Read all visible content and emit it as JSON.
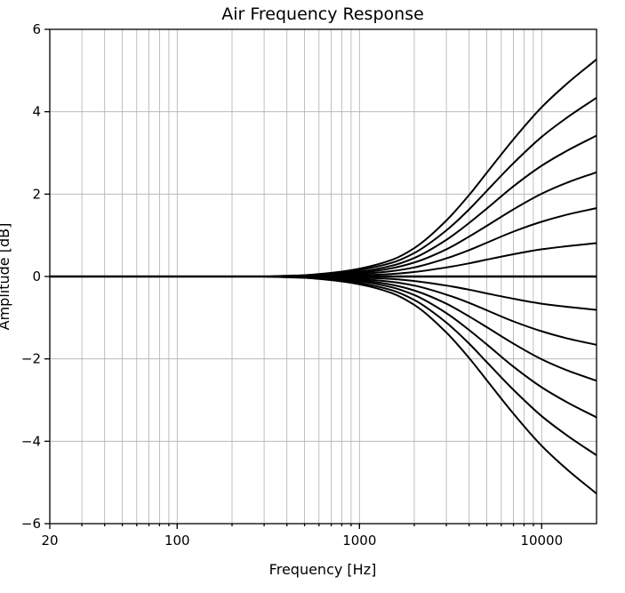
{
  "chart_data": {
    "type": "line",
    "title": "Air Frequency Response",
    "xlabel": "Frequency [Hz]",
    "ylabel": "Amplitude [dB]",
    "x_scale": "log",
    "xlim": [
      20,
      20000
    ],
    "ylim": [
      -6,
      6
    ],
    "x_ticks": [
      20,
      100,
      1000,
      10000
    ],
    "y_ticks": [
      6,
      4,
      2,
      0,
      -2,
      -4,
      -6
    ],
    "y_tick_labels": [
      "6",
      "4",
      "2",
      "0",
      "−2",
      "−4",
      "−6"
    ],
    "grid": true,
    "x": [
      20,
      100,
      200,
      300,
      400,
      500,
      600,
      800,
      1000,
      1500,
      2000,
      3000,
      4000,
      5000,
      7000,
      10000,
      14000,
      20000
    ],
    "series": [
      {
        "values": [
          0,
          0,
          0,
          0,
          0,
          0.01,
          0.01,
          0.02,
          0.03,
          0.06,
          0.11,
          0.22,
          0.32,
          0.41,
          0.54,
          0.66,
          0.74,
          0.81
        ]
      },
      {
        "values": [
          0,
          0,
          0,
          0,
          0,
          0.01,
          0.02,
          0.04,
          0.06,
          0.13,
          0.22,
          0.44,
          0.64,
          0.82,
          1.09,
          1.33,
          1.51,
          1.66
        ]
      },
      {
        "values": [
          0,
          0,
          0,
          0,
          0.01,
          0.02,
          0.03,
          0.06,
          0.09,
          0.2,
          0.34,
          0.66,
          0.97,
          1.23,
          1.63,
          2.01,
          2.29,
          2.53
        ]
      },
      {
        "values": [
          0,
          0,
          0,
          0,
          0.01,
          0.02,
          0.04,
          0.08,
          0.12,
          0.26,
          0.45,
          0.89,
          1.3,
          1.65,
          2.19,
          2.69,
          3.07,
          3.42
        ]
      },
      {
        "values": [
          0,
          0,
          0,
          0,
          0.01,
          0.03,
          0.05,
          0.1,
          0.16,
          0.33,
          0.57,
          1.12,
          1.63,
          2.08,
          2.75,
          3.39,
          3.88,
          4.34
        ]
      },
      {
        "values": [
          0,
          0,
          0,
          0,
          0.02,
          0.03,
          0.06,
          0.12,
          0.19,
          0.4,
          0.69,
          1.36,
          1.98,
          2.52,
          3.33,
          4.11,
          4.71,
          5.27
        ]
      },
      {
        "values": [
          0,
          0,
          0,
          0,
          0,
          0,
          0,
          0,
          0,
          0,
          0,
          0,
          0,
          0,
          0,
          0,
          0,
          0
        ]
      },
      {
        "values": [
          0,
          0,
          0,
          0,
          0,
          -0.01,
          -0.01,
          -0.02,
          -0.03,
          -0.06,
          -0.11,
          -0.22,
          -0.32,
          -0.41,
          -0.54,
          -0.66,
          -0.74,
          -0.81
        ]
      },
      {
        "values": [
          0,
          0,
          0,
          0,
          0,
          -0.01,
          -0.02,
          -0.04,
          -0.06,
          -0.13,
          -0.22,
          -0.44,
          -0.64,
          -0.82,
          -1.09,
          -1.33,
          -1.51,
          -1.66
        ]
      },
      {
        "values": [
          0,
          0,
          0,
          0,
          -0.01,
          -0.02,
          -0.03,
          -0.06,
          -0.09,
          -0.2,
          -0.34,
          -0.66,
          -0.97,
          -1.23,
          -1.63,
          -2.01,
          -2.29,
          -2.53
        ]
      },
      {
        "values": [
          0,
          0,
          0,
          0,
          -0.01,
          -0.02,
          -0.04,
          -0.08,
          -0.12,
          -0.26,
          -0.45,
          -0.89,
          -1.3,
          -1.65,
          -2.19,
          -2.69,
          -3.07,
          -3.42
        ]
      },
      {
        "values": [
          0,
          0,
          0,
          0,
          -0.01,
          -0.03,
          -0.05,
          -0.1,
          -0.16,
          -0.33,
          -0.57,
          -1.12,
          -1.63,
          -2.08,
          -2.75,
          -3.39,
          -3.88,
          -4.34
        ]
      },
      {
        "values": [
          0,
          0,
          0,
          0,
          -0.02,
          -0.03,
          -0.06,
          -0.12,
          -0.19,
          -0.4,
          -0.69,
          -1.36,
          -1.98,
          -2.52,
          -3.33,
          -4.11,
          -4.71,
          -5.27
        ]
      }
    ],
    "line_color": "#000000",
    "grid_color": "#b0b0b0"
  }
}
